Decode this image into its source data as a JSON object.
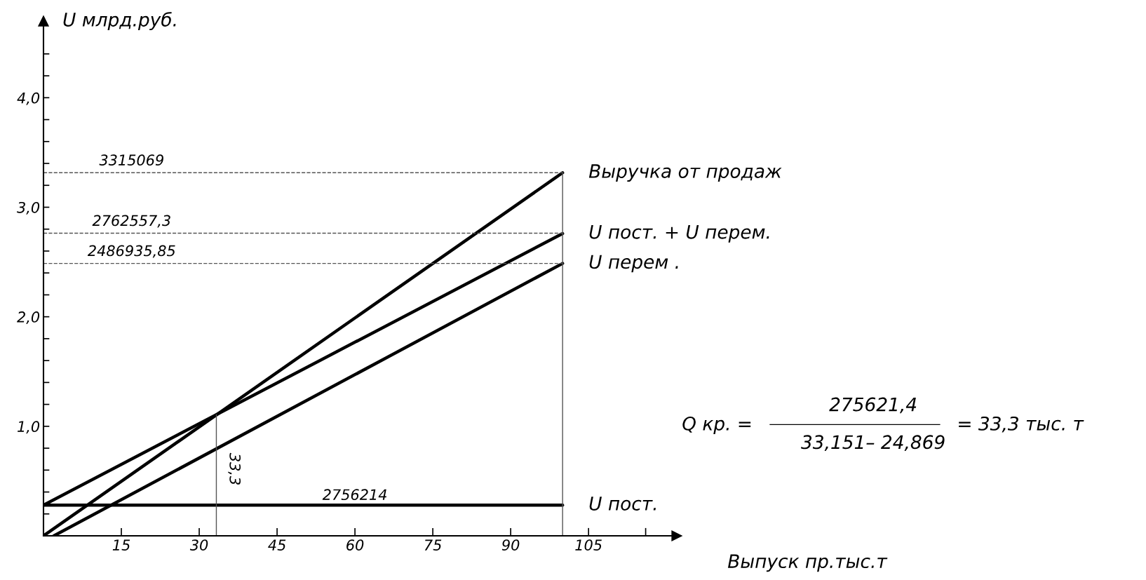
{
  "chart_data": {
    "type": "line",
    "xlabel": "Выпуск пр.тыс.т",
    "ylabel": "U млрд.руб.",
    "series": [
      {
        "name": "Выручка от продаж",
        "color": "#000000",
        "x": [
          0,
          100
        ],
        "values": [
          0,
          3.315
        ]
      },
      {
        "name": "U пост. + U перем.",
        "color": "#000000",
        "x": [
          0,
          100
        ],
        "values": [
          0.28,
          2.76
        ]
      },
      {
        "name": "U перем .",
        "color": "#000000",
        "x": [
          2,
          100
        ],
        "values": [
          0,
          2.487
        ]
      },
      {
        "name": "U пост.",
        "color": "#000000",
        "x": [
          0,
          100
        ],
        "values": [
          0.28,
          0.28
        ]
      }
    ],
    "xlim": [
      0,
      122
    ],
    "ylim": [
      0,
      4.7
    ],
    "xticks": [
      15,
      30,
      45,
      60,
      75,
      90,
      105,
      {
        "value": 116,
        "label": null
      }
    ],
    "yticks": [
      {
        "value": 0.2,
        "label": null
      },
      {
        "value": 0.4,
        "label": null
      },
      {
        "value": 0.6,
        "label": null
      },
      {
        "value": 0.8,
        "label": null
      },
      {
        "value": 1,
        "label": "1,0"
      },
      {
        "value": 1.2,
        "label": null
      },
      {
        "value": 1.4,
        "label": null
      },
      {
        "value": 1.6,
        "label": null
      },
      {
        "value": 1.8,
        "label": null
      },
      {
        "value": 2,
        "label": "2,0"
      },
      {
        "value": 2.2,
        "label": null
      },
      {
        "value": 2.4,
        "label": null
      },
      {
        "value": 2.6,
        "label": null
      },
      {
        "value": 2.8,
        "label": null
      },
      {
        "value": 3,
        "label": "3,0"
      },
      {
        "value": 3.2,
        "label": null
      },
      {
        "value": 3.4,
        "label": null
      },
      {
        "value": 3.6,
        "label": null
      },
      {
        "value": 3.8,
        "label": null
      },
      {
        "value": 4,
        "label": "4,0"
      },
      {
        "value": 4.2,
        "label": null
      },
      {
        "value": 4.4,
        "label": null
      }
    ],
    "ref_lines": [
      {
        "axis": "y",
        "value": 3.315,
        "color": "#555555",
        "line_style": "dashed"
      },
      {
        "axis": "y",
        "value": 2.7626,
        "color": "#555555",
        "line_style": "dashed"
      },
      {
        "axis": "y",
        "value": 2.487,
        "color": "#555555",
        "line_style": "dashed"
      },
      {
        "axis": "x",
        "value": 33.3,
        "label": "33,3",
        "color": "#555555",
        "line_style": "solid"
      },
      {
        "axis": "x",
        "value": 100,
        "label": null,
        "color": "#555555",
        "line_style": "solid"
      }
    ],
    "annotations": [
      {
        "text": "2756214",
        "x": 60,
        "y": 0.28
      },
      "3315069",
      "2762557,3",
      "2486935,85",
      "Q кр. =",
      "275621,4",
      "33,151– 24,869",
      "= 33,3 тыс. т"
    ],
    "grid": false,
    "legend": false,
    "marker": "none",
    "line_style": "solid"
  }
}
